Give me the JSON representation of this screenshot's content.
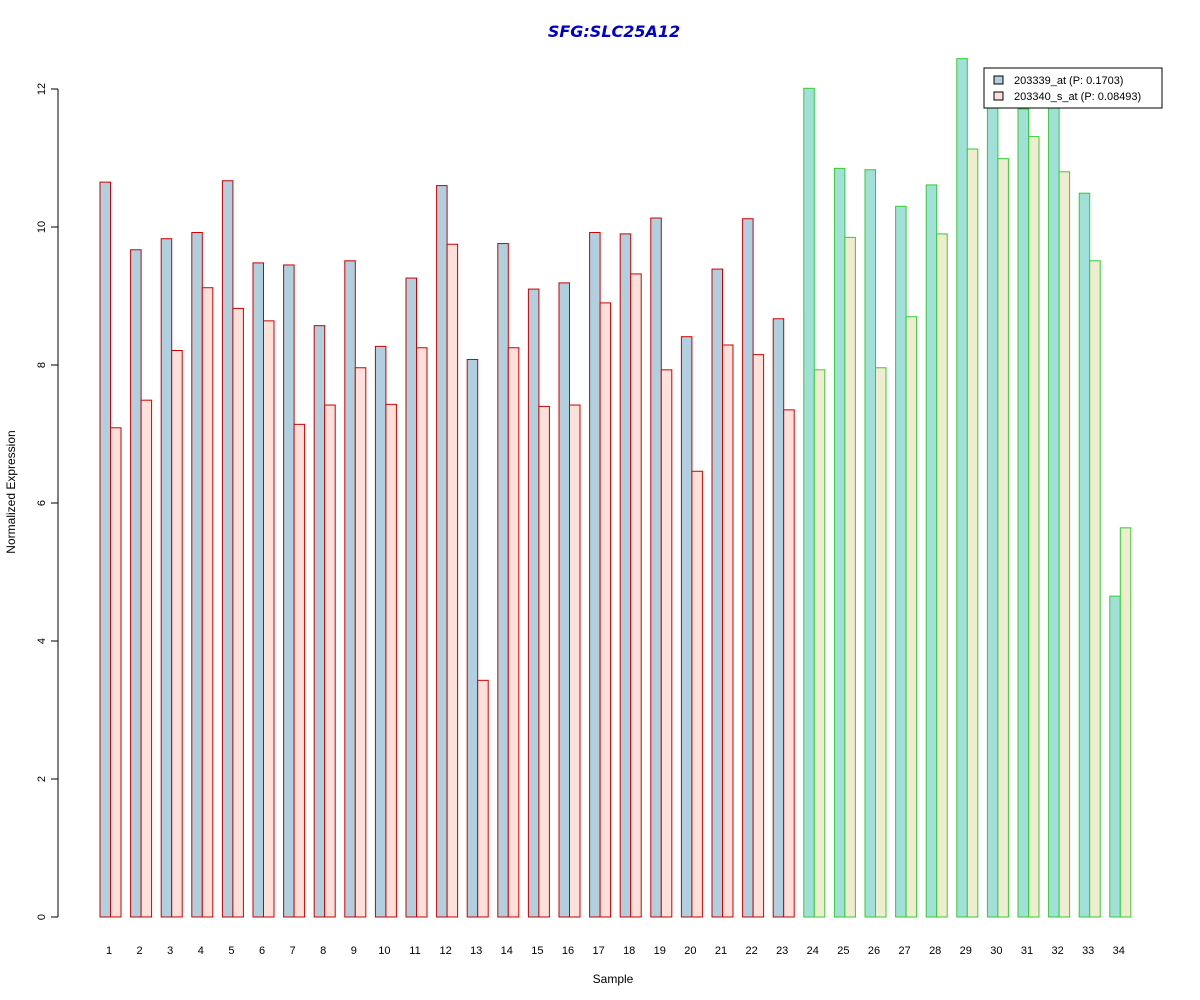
{
  "chart_data": {
    "type": "bar",
    "title": "SFG:SLC25A12",
    "xlabel": "Sample",
    "ylabel": "Normalized Expression",
    "ylim": [
      0,
      12.5
    ],
    "yticks": [
      "0",
      "2",
      "4",
      "6",
      "8",
      "10",
      "12"
    ],
    "categories": [
      "1",
      "2",
      "3",
      "4",
      "5",
      "6",
      "7",
      "8",
      "9",
      "10",
      "11",
      "12",
      "13",
      "14",
      "15",
      "16",
      "17",
      "18",
      "19",
      "20",
      "21",
      "22",
      "23",
      "24",
      "25",
      "26",
      "27",
      "28",
      "29",
      "30",
      "31",
      "32",
      "33",
      "34"
    ],
    "series": [
      {
        "name": "203339_at (P: 0.1703)",
        "values": [
          10.65,
          9.67,
          9.83,
          9.92,
          10.67,
          9.48,
          9.45,
          8.57,
          9.51,
          8.27,
          9.26,
          10.6,
          8.08,
          9.76,
          9.1,
          9.19,
          9.92,
          9.9,
          10.13,
          8.41,
          9.39,
          10.12,
          8.67,
          12.01,
          10.85,
          10.83,
          10.3,
          10.61,
          12.44,
          11.73,
          11.71,
          11.73,
          10.49,
          4.65
        ]
      },
      {
        "name": "203340_s_at (P: 0.08493)",
        "values": [
          7.09,
          7.49,
          8.21,
          9.12,
          8.82,
          8.64,
          7.14,
          7.42,
          7.96,
          7.43,
          8.25,
          9.75,
          3.43,
          8.25,
          7.4,
          7.42,
          8.9,
          9.32,
          7.93,
          6.46,
          8.29,
          8.15,
          7.35,
          7.93,
          9.85,
          7.96,
          8.7,
          9.9,
          11.13,
          10.99,
          11.31,
          10.8,
          9.51,
          5.64
        ]
      }
    ],
    "groups": [
      {
        "samples": [
          1,
          23
        ],
        "border_color": "#cc0000",
        "fills": [
          "#b0d0e0",
          "#fde0da"
        ]
      },
      {
        "samples": [
          24,
          34
        ],
        "border_color": "#33cc33",
        "fills": [
          "#a0e0d8",
          "#f0ecd0"
        ]
      }
    ],
    "legend": {
      "position": "top-right"
    }
  }
}
